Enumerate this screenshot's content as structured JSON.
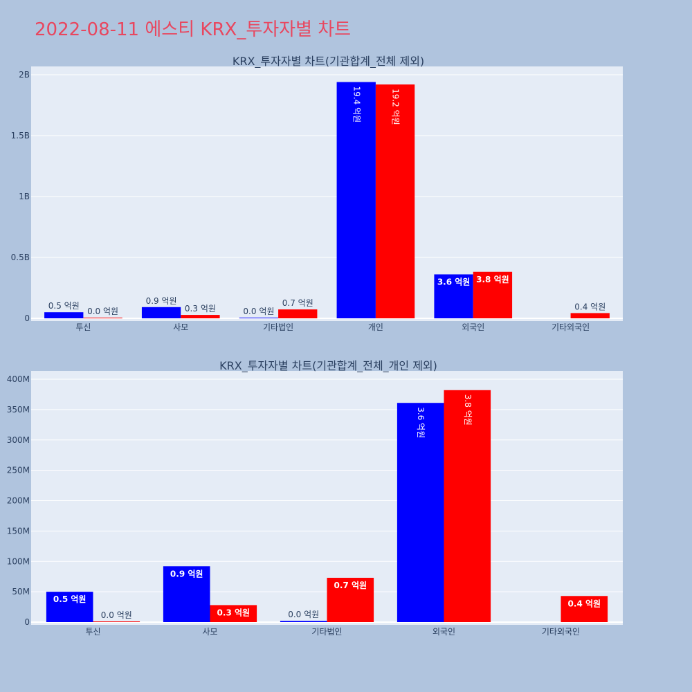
{
  "page": {
    "title": "2022-08-11 에스티 KRX_투자자별 차트"
  },
  "colors": {
    "background": "#b0c4de",
    "plot_bg": "#e5ecf6",
    "series_1": "#0000ff",
    "series_2": "#ff0000",
    "title": "#e8475f",
    "text": "#2a3f5f"
  },
  "chart_data": [
    {
      "type": "bar",
      "title": "KRX_투자자별 차트(기관합계_전체 제외)",
      "categories": [
        "투신",
        "사모",
        "기타법인",
        "개인",
        "외국인",
        "기타외국인"
      ],
      "yticks": [
        {
          "value": 0,
          "label": "0"
        },
        {
          "value": 500000000,
          "label": "0.5B"
        },
        {
          "value": 1000000000,
          "label": "1B"
        },
        {
          "value": 1500000000,
          "label": "1.5B"
        },
        {
          "value": 2000000000,
          "label": "2B"
        }
      ],
      "ylim": [
        0,
        2000000000
      ],
      "grid": true,
      "series": [
        {
          "color": "#0000ff",
          "values": [
            50000000,
            92000000,
            2000000,
            1940000000,
            361000000,
            null
          ],
          "labels": [
            "0.5 억원",
            "0.9 억원",
            "0.0 억원",
            "19.4 억원",
            "3.6 억원",
            ""
          ]
        },
        {
          "color": "#ff0000",
          "values": [
            1000000,
            28000000,
            73000000,
            1920000000,
            382000000,
            43000000
          ],
          "labels": [
            "0.0 억원",
            "0.3 억원",
            "0.7 억원",
            "19.2 억원",
            "3.8 억원",
            "0.4 억원"
          ]
        }
      ]
    },
    {
      "type": "bar",
      "title": "KRX_투자자별 차트(기관합계_전체_개인 제외)",
      "categories": [
        "투신",
        "사모",
        "기타법인",
        "외국인",
        "기타외국인"
      ],
      "yticks": [
        {
          "value": 0,
          "label": "0"
        },
        {
          "value": 50000000,
          "label": "50M"
        },
        {
          "value": 100000000,
          "label": "100M"
        },
        {
          "value": 150000000,
          "label": "150M"
        },
        {
          "value": 200000000,
          "label": "200M"
        },
        {
          "value": 250000000,
          "label": "250M"
        },
        {
          "value": 300000000,
          "label": "300M"
        },
        {
          "value": 350000000,
          "label": "350M"
        },
        {
          "value": 400000000,
          "label": "400M"
        }
      ],
      "ylim": [
        0,
        400000000
      ],
      "grid": true,
      "series": [
        {
          "color": "#0000ff",
          "values": [
            50000000,
            92000000,
            2000000,
            361000000,
            null
          ],
          "labels": [
            "0.5 억원",
            "0.9 억원",
            "0.0 억원",
            "3.6 억원",
            ""
          ]
        },
        {
          "color": "#ff0000",
          "values": [
            1000000,
            28000000,
            73000000,
            382000000,
            43000000
          ],
          "labels": [
            "0.0 억원",
            "0.3 억원",
            "0.7 억원",
            "3.8 억원",
            "0.4 억원"
          ]
        }
      ]
    }
  ]
}
